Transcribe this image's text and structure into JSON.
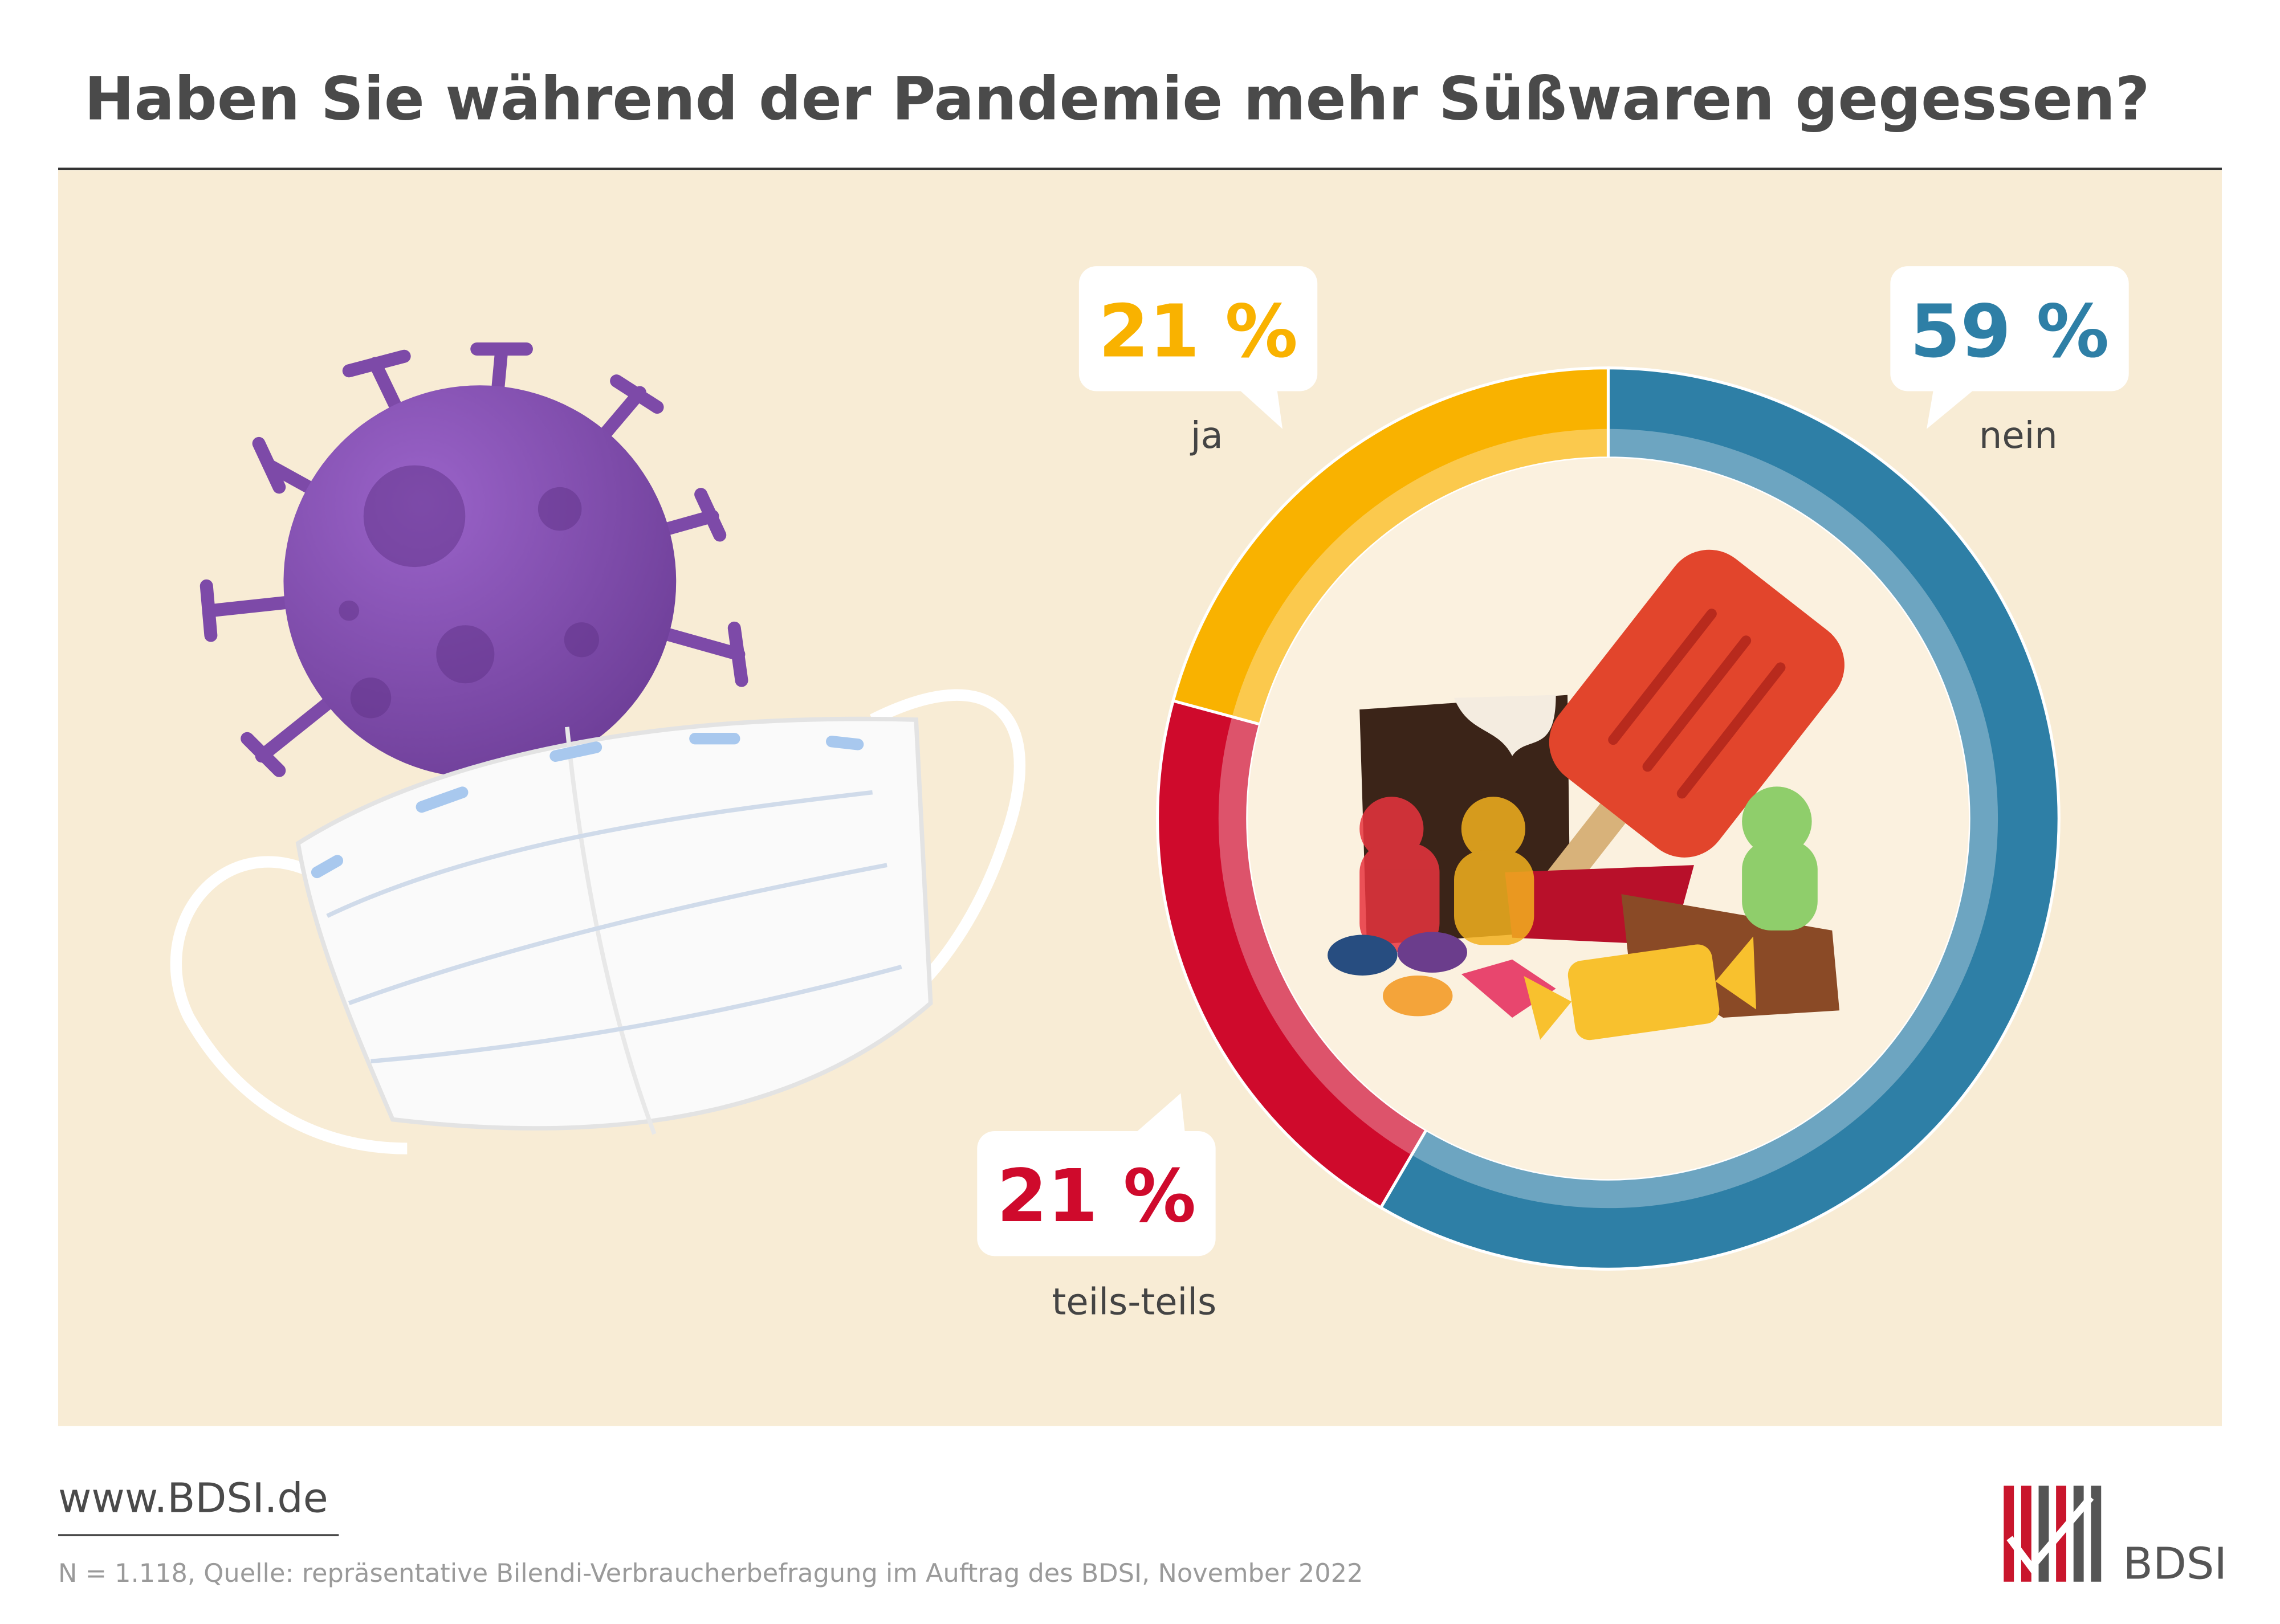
{
  "chart_data": {
    "type": "donut",
    "title": "Haben Sie während der Pandemie mehr Süßwaren gegessen?",
    "categories": [
      "nein",
      "teils-teils",
      "ja"
    ],
    "values": [
      59,
      21,
      21
    ],
    "value_labels": [
      "59 %",
      "21 %",
      "21 %"
    ],
    "colors": [
      "#2e7fa6",
      "#cf0a2c",
      "#f9b200"
    ]
  },
  "footer": {
    "url": "www.BDSI.de",
    "note": "N = 1.118, Quelle: repräsentative Bilendi-Verbraucherbefragung im Auftrag des BDSI, November 2022",
    "logo": "BDSI"
  }
}
